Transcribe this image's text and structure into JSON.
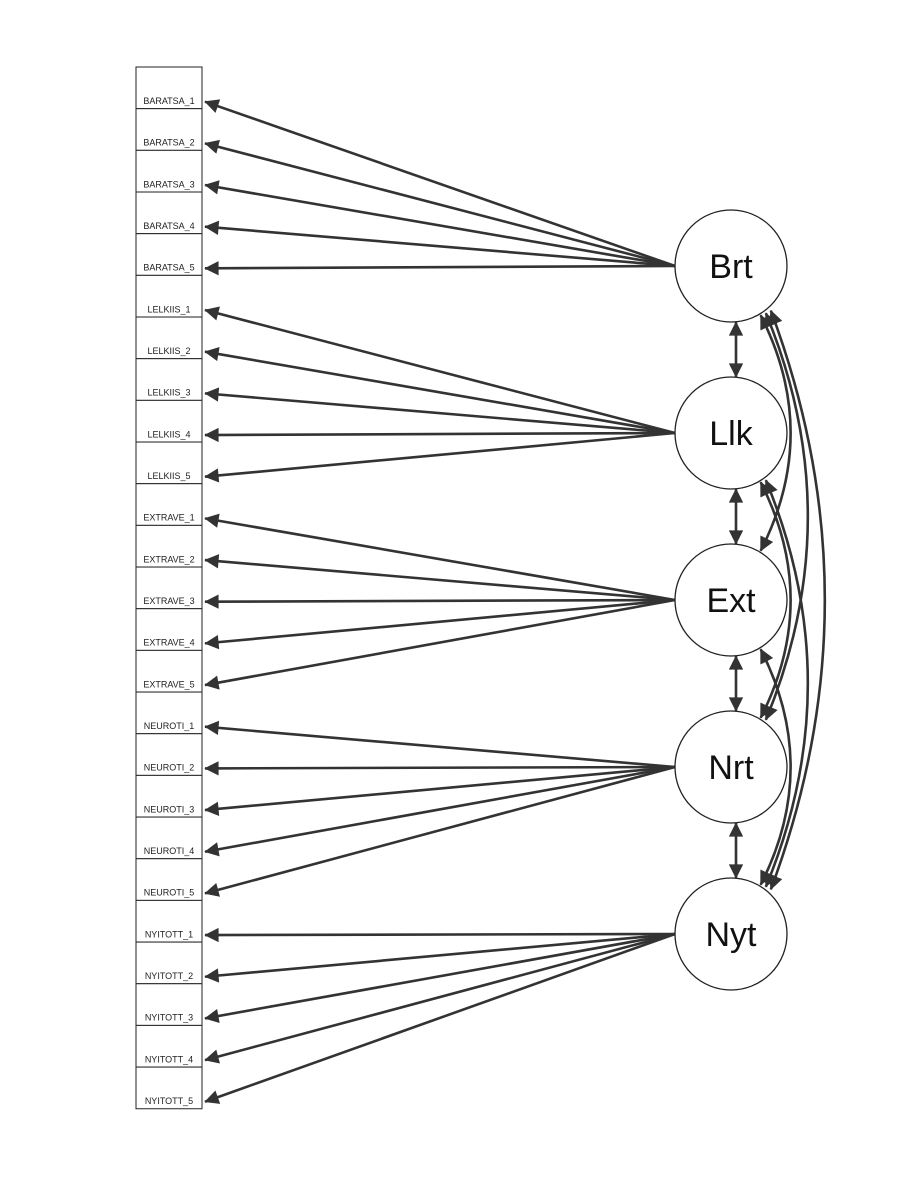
{
  "indicators": [
    "BARATSA_1",
    "BARATSA_2",
    "BARATSA_3",
    "BARATSA_4",
    "BARATSA_5",
    "LELKIIS_1",
    "LELKIIS_2",
    "LELKIIS_3",
    "LELKIIS_4",
    "LELKIIS_5",
    "EXTRAVE_1",
    "EXTRAVE_2",
    "EXTRAVE_3",
    "EXTRAVE_4",
    "EXTRAVE_5",
    "NEUROTI_1",
    "NEUROTI_2",
    "NEUROTI_3",
    "NEUROTI_4",
    "NEUROTI_5",
    "NYITOTT_1",
    "NYITOTT_2",
    "NYITOTT_3",
    "NYITOTT_4",
    "NYITOTT_5"
  ],
  "latents": [
    {
      "label": "Brt",
      "indicators": [
        0,
        1,
        2,
        3,
        4
      ]
    },
    {
      "label": "Llk",
      "indicators": [
        5,
        6,
        7,
        8,
        9
      ]
    },
    {
      "label": "Ext",
      "indicators": [
        10,
        11,
        12,
        13,
        14
      ]
    },
    {
      "label": "Nrt",
      "indicators": [
        15,
        16,
        17,
        18,
        19
      ]
    },
    {
      "label": "Nyt",
      "indicators": [
        20,
        21,
        22,
        23,
        24
      ]
    }
  ],
  "covariances": [
    [
      0,
      1
    ],
    [
      1,
      2
    ],
    [
      2,
      3
    ],
    [
      3,
      4
    ],
    [
      0,
      2
    ],
    [
      0,
      3
    ],
    [
      0,
      4
    ],
    [
      1,
      3
    ],
    [
      1,
      4
    ],
    [
      2,
      4
    ]
  ],
  "colors": {
    "stroke": "#333333",
    "fill": "#ffffff",
    "text": "#111111"
  }
}
